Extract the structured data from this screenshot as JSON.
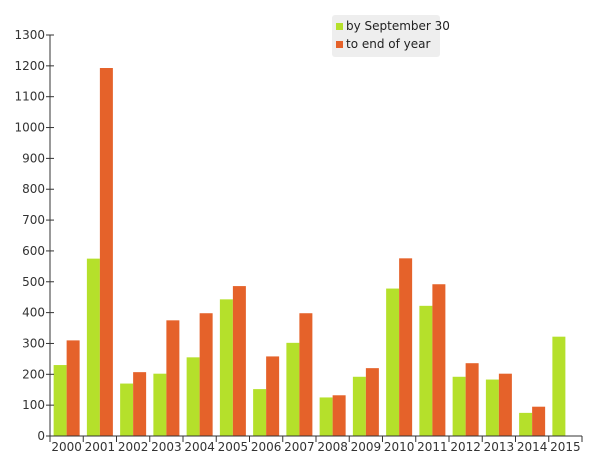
{
  "chart_data": {
    "type": "bar",
    "title": "",
    "xlabel": "",
    "ylabel": "",
    "categories": [
      "2000",
      "2001",
      "2002",
      "2003",
      "2004",
      "2005",
      "2006",
      "2007",
      "2008",
      "2009",
      "2010",
      "2011",
      "2012",
      "2013",
      "2014",
      "2015"
    ],
    "series": [
      {
        "name": "by September 30",
        "color": "#b5e02b",
        "values": [
          230,
          575,
          170,
          202,
          255,
          443,
          152,
          302,
          125,
          192,
          478,
          422,
          192,
          183,
          75,
          322
        ]
      },
      {
        "name": "to end of year",
        "color": "#e5622a",
        "values": [
          310,
          1193,
          207,
          375,
          398,
          486,
          258,
          398,
          132,
          220,
          576,
          492,
          236,
          202,
          95,
          null
        ]
      }
    ],
    "ylim": [
      0,
      1300
    ],
    "yticks": [
      0,
      100,
      200,
      300,
      400,
      500,
      600,
      700,
      800,
      900,
      1000,
      1100,
      1200,
      1300
    ],
    "grid": false,
    "legend_position": "top-right"
  }
}
